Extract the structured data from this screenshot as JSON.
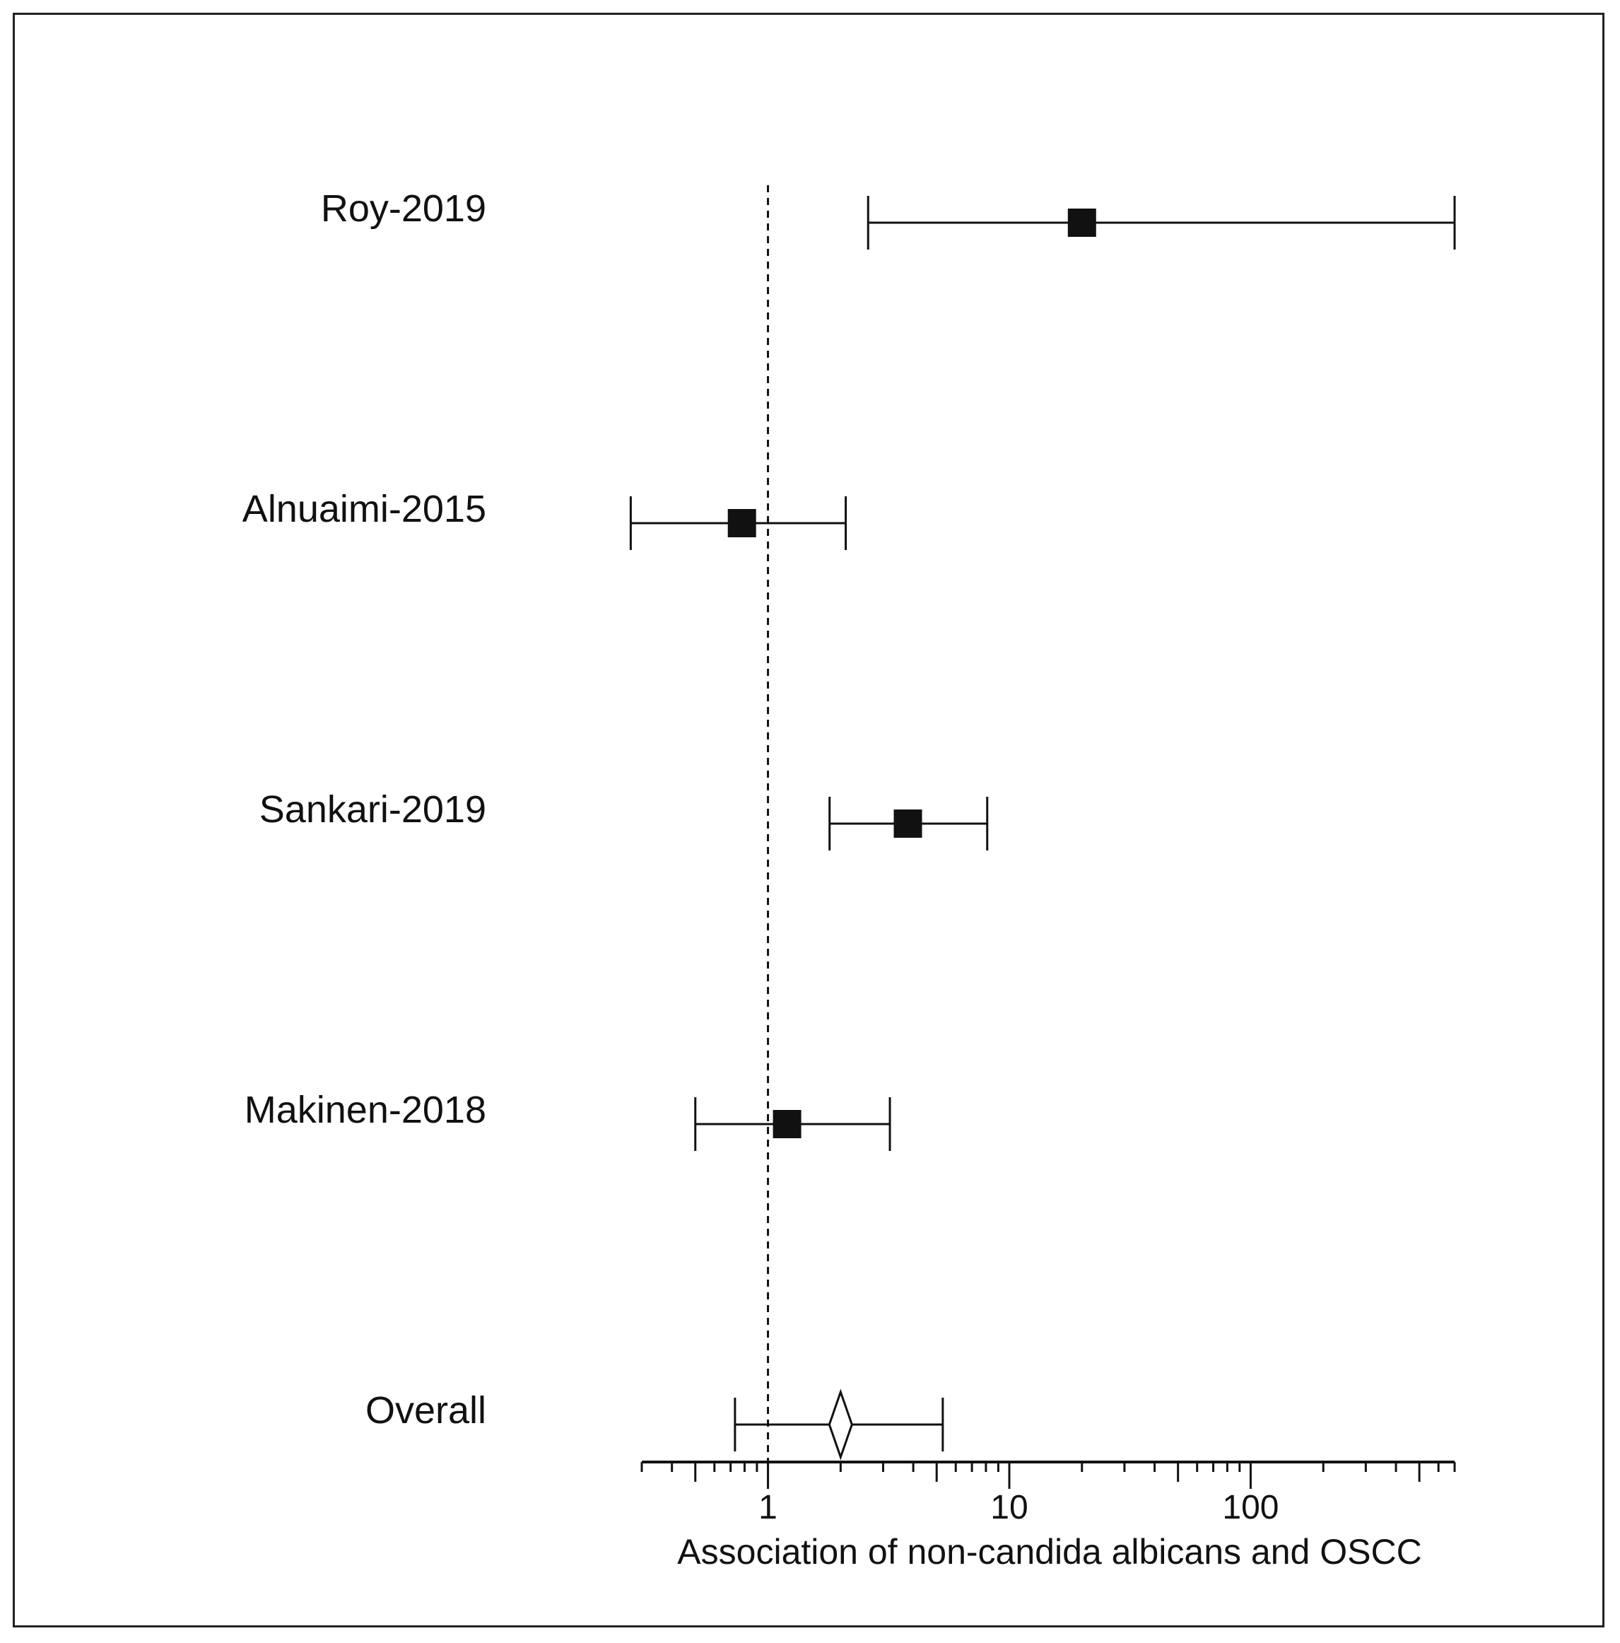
{
  "chart_data": {
    "type": "forest",
    "xlabel": "Association of non-candida albicans and OSCC",
    "xscale": "log",
    "xlim": [
      0.3,
      700
    ],
    "tick_labels": [
      "1",
      "10",
      "100"
    ],
    "reference_line": 1,
    "studies": [
      {
        "name": "Roy-2019",
        "estimate": 20,
        "ci_low": 2.6,
        "ci_high": 700,
        "marker": "square"
      },
      {
        "name": "Alnuaimi-2015",
        "estimate": 0.78,
        "ci_low": 0.27,
        "ci_high": 2.1,
        "marker": "square"
      },
      {
        "name": "Sankari-2019",
        "estimate": 3.8,
        "ci_low": 1.8,
        "ci_high": 8.1,
        "marker": "square"
      },
      {
        "name": "Makinen-2018",
        "estimate": 1.2,
        "ci_low": 0.5,
        "ci_high": 3.2,
        "marker": "square"
      },
      {
        "name": "Overall",
        "estimate": 2.0,
        "ci_low": 0.73,
        "ci_high": 5.3,
        "marker": "diamond"
      }
    ]
  },
  "colors": {
    "ink": "#111111",
    "background": "#ffffff"
  }
}
